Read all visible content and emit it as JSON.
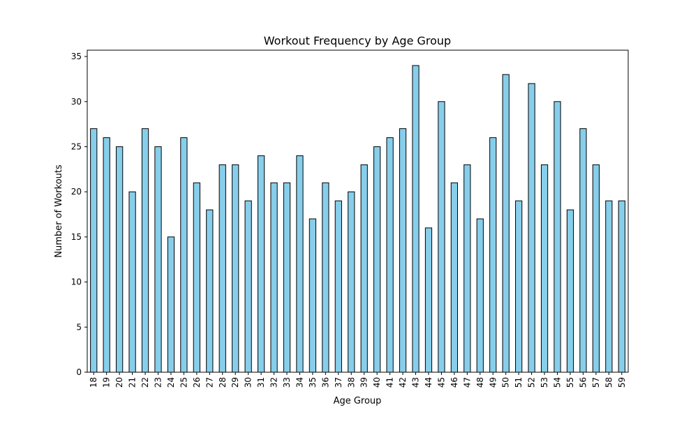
{
  "chart_data": {
    "type": "bar",
    "title": "Workout Frequency by Age Group",
    "xlabel": "Age Group",
    "ylabel": "Number of Workouts",
    "categories": [
      "18",
      "19",
      "20",
      "21",
      "22",
      "23",
      "24",
      "25",
      "26",
      "27",
      "28",
      "29",
      "30",
      "31",
      "32",
      "33",
      "34",
      "35",
      "36",
      "37",
      "38",
      "39",
      "40",
      "41",
      "42",
      "43",
      "44",
      "45",
      "46",
      "47",
      "48",
      "49",
      "50",
      "51",
      "52",
      "53",
      "54",
      "55",
      "56",
      "57",
      "58",
      "59"
    ],
    "values": [
      27,
      26,
      25,
      20,
      27,
      25,
      15,
      26,
      21,
      18,
      23,
      23,
      19,
      24,
      21,
      21,
      24,
      17,
      21,
      19,
      20,
      23,
      25,
      26,
      27,
      34,
      16,
      30,
      21,
      23,
      17,
      26,
      33,
      19,
      32,
      23,
      30,
      18,
      27,
      23,
      19,
      19
    ],
    "ylim": [
      0,
      35.7
    ],
    "yticks": [
      0,
      5,
      10,
      15,
      20,
      25,
      30,
      35
    ],
    "grid": false,
    "legend": "none",
    "bar_color": "#87ceeb",
    "edge_color": "#000000"
  }
}
